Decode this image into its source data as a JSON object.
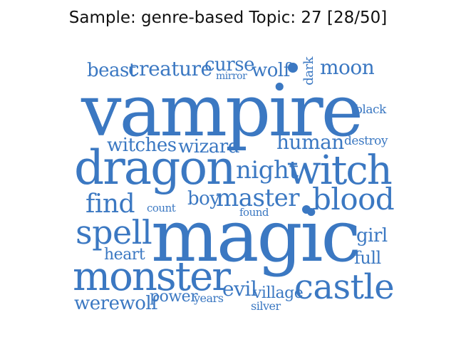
{
  "title": "Sample: genre-based Topic: 27 [28/50]",
  "accent_color": "#3b78c2",
  "words": [
    {
      "id": "beast",
      "text": "beast"
    },
    {
      "id": "creature",
      "text": "creature"
    },
    {
      "id": "curse",
      "text": "curse"
    },
    {
      "id": "mirror",
      "text": "mirror"
    },
    {
      "id": "wolf",
      "text": "wolf"
    },
    {
      "id": "dark",
      "text": "dark"
    },
    {
      "id": "moon",
      "text": "moon"
    },
    {
      "id": "vampire",
      "text": "vampire"
    },
    {
      "id": "black",
      "text": "black"
    },
    {
      "id": "witches",
      "text": "witches"
    },
    {
      "id": "wizard",
      "text": "wizard"
    },
    {
      "id": "human",
      "text": "human"
    },
    {
      "id": "destroy",
      "text": "destroy"
    },
    {
      "id": "dragon",
      "text": "dragon"
    },
    {
      "id": "night",
      "text": "night"
    },
    {
      "id": "witch",
      "text": "witch"
    },
    {
      "id": "find",
      "text": "find"
    },
    {
      "id": "count",
      "text": "count"
    },
    {
      "id": "boy",
      "text": "boy"
    },
    {
      "id": "master",
      "text": "master"
    },
    {
      "id": "found",
      "text": "found"
    },
    {
      "id": "blood",
      "text": "blood"
    },
    {
      "id": "spell",
      "text": "spell"
    },
    {
      "id": "magic",
      "text": "magic"
    },
    {
      "id": "girl",
      "text": "girl"
    },
    {
      "id": "heart",
      "text": "heart"
    },
    {
      "id": "full",
      "text": "full"
    },
    {
      "id": "monster",
      "text": "monster"
    },
    {
      "id": "evil",
      "text": "evil"
    },
    {
      "id": "castle",
      "text": "castle"
    },
    {
      "id": "werewolf",
      "text": "werewolf"
    },
    {
      "id": "power",
      "text": "power"
    },
    {
      "id": "years",
      "text": "years"
    },
    {
      "id": "village",
      "text": "village"
    },
    {
      "id": "silver",
      "text": "silver"
    }
  ]
}
